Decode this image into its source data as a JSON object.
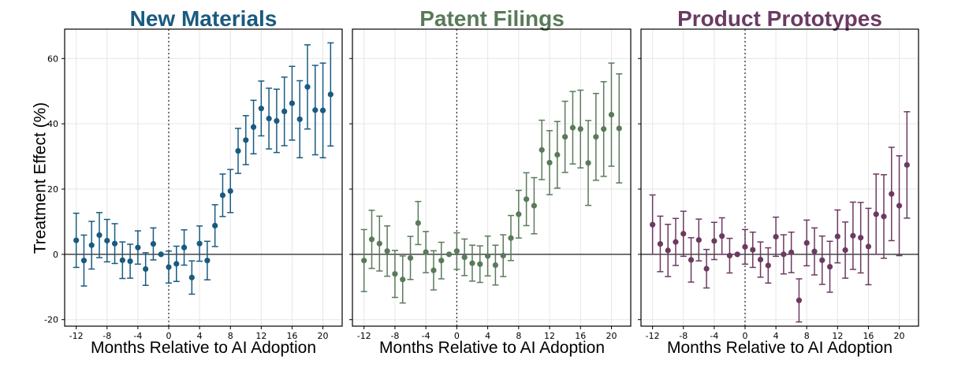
{
  "chart_data": [
    {
      "type": "scatter",
      "title": "New Materials",
      "color": "#1a5a80",
      "xlabel": "Months Relative to AI Adoption",
      "ylabel": "Treatment Effect (%)",
      "xlim": [
        -13.5,
        22.5
      ],
      "ylim": [
        -22,
        69
      ],
      "xticks": [
        -12,
        -8,
        -4,
        0,
        4,
        8,
        12,
        16,
        20
      ],
      "yticks": [
        -20,
        0,
        20,
        40,
        60
      ],
      "grid": true,
      "event_line_x": 0,
      "points": [
        {
          "x": -12,
          "y": 4.3,
          "lo": -4.0,
          "hi": 12.6
        },
        {
          "x": -11,
          "y": -1.9,
          "lo": -9.7,
          "hi": 5.9
        },
        {
          "x": -10,
          "y": 2.8,
          "lo": -4.5,
          "hi": 10.1
        },
        {
          "x": -9,
          "y": 5.9,
          "lo": -1.0,
          "hi": 12.8
        },
        {
          "x": -8,
          "y": 4.2,
          "lo": -2.3,
          "hi": 10.7
        },
        {
          "x": -7,
          "y": 3.3,
          "lo": -2.8,
          "hi": 9.4
        },
        {
          "x": -6,
          "y": -1.8,
          "lo": -7.4,
          "hi": 3.8
        },
        {
          "x": -5,
          "y": -2.1,
          "lo": -7.3,
          "hi": 3.1
        },
        {
          "x": -4,
          "y": 2.1,
          "lo": -3.0,
          "hi": 7.2
        },
        {
          "x": -3,
          "y": -4.5,
          "lo": -9.5,
          "hi": 0.5
        },
        {
          "x": -2,
          "y": 3.2,
          "lo": -1.7,
          "hi": 8.1
        },
        {
          "x": -1,
          "y": 0.0,
          "lo": 0.0,
          "hi": 0.0
        },
        {
          "x": 0,
          "y": -3.9,
          "lo": -8.8,
          "hi": 1.0
        },
        {
          "x": 1,
          "y": -2.9,
          "lo": -8.3,
          "hi": 2.5
        },
        {
          "x": 2,
          "y": 2.1,
          "lo": -3.3,
          "hi": 7.5
        },
        {
          "x": 3,
          "y": -7.1,
          "lo": -12.2,
          "hi": -2.0
        },
        {
          "x": 4,
          "y": 3.3,
          "lo": -2.1,
          "hi": 8.7
        },
        {
          "x": 5,
          "y": -1.9,
          "lo": -7.8,
          "hi": 4.0
        },
        {
          "x": 6,
          "y": 8.8,
          "lo": 2.4,
          "hi": 15.2
        },
        {
          "x": 7,
          "y": 18.1,
          "lo": 11.6,
          "hi": 24.6
        },
        {
          "x": 8,
          "y": 19.4,
          "lo": 12.8,
          "hi": 26.0
        },
        {
          "x": 9,
          "y": 31.7,
          "lo": 24.8,
          "hi": 38.6
        },
        {
          "x": 10,
          "y": 35.0,
          "lo": 27.5,
          "hi": 42.5
        },
        {
          "x": 11,
          "y": 39.0,
          "lo": 30.8,
          "hi": 47.2
        },
        {
          "x": 12,
          "y": 44.7,
          "lo": 36.3,
          "hi": 53.1
        },
        {
          "x": 13,
          "y": 41.6,
          "lo": 32.3,
          "hi": 50.9
        },
        {
          "x": 14,
          "y": 40.9,
          "lo": 31.2,
          "hi": 50.6
        },
        {
          "x": 15,
          "y": 43.8,
          "lo": 33.3,
          "hi": 54.3
        },
        {
          "x": 16,
          "y": 46.3,
          "lo": 35.0,
          "hi": 57.6
        },
        {
          "x": 17,
          "y": 41.4,
          "lo": 29.6,
          "hi": 53.2
        },
        {
          "x": 18,
          "y": 51.3,
          "lo": 38.4,
          "hi": 64.2
        },
        {
          "x": 19,
          "y": 44.2,
          "lo": 30.5,
          "hi": 57.9
        },
        {
          "x": 20,
          "y": 44.1,
          "lo": 29.6,
          "hi": 58.6
        },
        {
          "x": 21,
          "y": 49.0,
          "lo": 33.2,
          "hi": 64.8
        }
      ]
    },
    {
      "type": "scatter",
      "title": "Patent Filings",
      "color": "#5a7a5a",
      "xlabel": "Months Relative to AI Adoption",
      "ylabel": "",
      "xlim": [
        -13.5,
        22.5
      ],
      "ylim": [
        -22,
        69
      ],
      "xticks": [
        -12,
        -8,
        -4,
        0,
        4,
        8,
        12,
        16,
        20
      ],
      "yticks": [
        -20,
        0,
        20,
        40,
        60
      ],
      "grid": true,
      "event_line_x": 0,
      "points": [
        {
          "x": -12,
          "y": -1.9,
          "lo": -11.4,
          "hi": 7.6
        },
        {
          "x": -11,
          "y": 4.6,
          "lo": -4.3,
          "hi": 13.5
        },
        {
          "x": -10,
          "y": 3.3,
          "lo": -5.1,
          "hi": 11.7
        },
        {
          "x": -9,
          "y": 1.0,
          "lo": -6.7,
          "hi": 8.7
        },
        {
          "x": -8,
          "y": -6.0,
          "lo": -13.2,
          "hi": 1.2
        },
        {
          "x": -7,
          "y": -7.7,
          "lo": -14.9,
          "hi": -0.5
        },
        {
          "x": -6,
          "y": -1.1,
          "lo": -7.7,
          "hi": 5.5
        },
        {
          "x": -5,
          "y": 9.6,
          "lo": 3.0,
          "hi": 16.2
        },
        {
          "x": -4,
          "y": 0.7,
          "lo": -5.6,
          "hi": 7.0
        },
        {
          "x": -3,
          "y": -4.9,
          "lo": -10.9,
          "hi": 1.1
        },
        {
          "x": -2,
          "y": -1.9,
          "lo": -7.5,
          "hi": 3.7
        },
        {
          "x": -1,
          "y": 0.0,
          "lo": 0.0,
          "hi": 0.0
        },
        {
          "x": 0,
          "y": 1.0,
          "lo": -4.6,
          "hi": 6.6
        },
        {
          "x": 1,
          "y": -0.9,
          "lo": -6.5,
          "hi": 4.7
        },
        {
          "x": 2,
          "y": -2.7,
          "lo": -8.2,
          "hi": 2.8
        },
        {
          "x": 3,
          "y": -3.0,
          "lo": -8.6,
          "hi": 2.6
        },
        {
          "x": 4,
          "y": -0.5,
          "lo": -6.6,
          "hi": 5.6
        },
        {
          "x": 5,
          "y": -3.3,
          "lo": -9.4,
          "hi": 2.8
        },
        {
          "x": 6,
          "y": -0.4,
          "lo": -6.8,
          "hi": 6.0
        },
        {
          "x": 7,
          "y": 5.0,
          "lo": -1.9,
          "hi": 11.9
        },
        {
          "x": 8,
          "y": 12.3,
          "lo": 5.0,
          "hi": 19.6
        },
        {
          "x": 9,
          "y": 16.9,
          "lo": 8.8,
          "hi": 25.0
        },
        {
          "x": 10,
          "y": 14.9,
          "lo": 6.3,
          "hi": 23.5
        },
        {
          "x": 11,
          "y": 32.0,
          "lo": 22.9,
          "hi": 41.1
        },
        {
          "x": 12,
          "y": 28.1,
          "lo": 18.3,
          "hi": 37.9
        },
        {
          "x": 13,
          "y": 30.5,
          "lo": 20.3,
          "hi": 40.7
        },
        {
          "x": 14,
          "y": 36.0,
          "lo": 25.1,
          "hi": 46.9
        },
        {
          "x": 15,
          "y": 38.8,
          "lo": 27.7,
          "hi": 49.9
        },
        {
          "x": 16,
          "y": 38.4,
          "lo": 26.5,
          "hi": 50.3
        },
        {
          "x": 17,
          "y": 28.0,
          "lo": 15.0,
          "hi": 41.0
        },
        {
          "x": 18,
          "y": 36.0,
          "lo": 22.7,
          "hi": 49.3
        },
        {
          "x": 19,
          "y": 38.4,
          "lo": 23.9,
          "hi": 52.9
        },
        {
          "x": 20,
          "y": 42.8,
          "lo": 27.0,
          "hi": 58.6
        },
        {
          "x": 21,
          "y": 38.6,
          "lo": 21.9,
          "hi": 55.3
        }
      ]
    },
    {
      "type": "scatter",
      "title": "Product Prototypes",
      "color": "#6b3a62",
      "xlabel": "Months Relative to AI Adoption",
      "ylabel": "",
      "xlim": [
        -13.5,
        22.5
      ],
      "ylim": [
        -22,
        69
      ],
      "xticks": [
        -12,
        -8,
        -4,
        0,
        4,
        8,
        12,
        16,
        20
      ],
      "yticks": [
        -20,
        0,
        20,
        40,
        60
      ],
      "grid": true,
      "event_line_x": 0,
      "points": [
        {
          "x": -12,
          "y": 9.1,
          "lo": 0.0,
          "hi": 18.2
        },
        {
          "x": -11,
          "y": 3.2,
          "lo": -5.3,
          "hi": 11.7
        },
        {
          "x": -10,
          "y": 1.2,
          "lo": -6.8,
          "hi": 9.2
        },
        {
          "x": -9,
          "y": 3.8,
          "lo": -3.4,
          "hi": 11.0
        },
        {
          "x": -8,
          "y": 6.3,
          "lo": -0.6,
          "hi": 13.2
        },
        {
          "x": -7,
          "y": -1.7,
          "lo": -8.5,
          "hi": 5.1
        },
        {
          "x": -6,
          "y": 4.4,
          "lo": -2.0,
          "hi": 10.8
        },
        {
          "x": -5,
          "y": -4.4,
          "lo": -10.3,
          "hi": 1.5
        },
        {
          "x": -4,
          "y": 4.1,
          "lo": -1.6,
          "hi": 9.8
        },
        {
          "x": -3,
          "y": 5.6,
          "lo": 0.0,
          "hi": 11.2
        },
        {
          "x": -2,
          "y": -0.4,
          "lo": -5.7,
          "hi": 4.9
        },
        {
          "x": -1,
          "y": 0.0,
          "lo": 0.0,
          "hi": 0.0
        },
        {
          "x": 0,
          "y": 2.3,
          "lo": -3.0,
          "hi": 7.6
        },
        {
          "x": 1,
          "y": 1.4,
          "lo": -4.0,
          "hi": 6.8
        },
        {
          "x": 2,
          "y": -1.6,
          "lo": -7.0,
          "hi": 3.8
        },
        {
          "x": 3,
          "y": -3.4,
          "lo": -8.8,
          "hi": 2.0
        },
        {
          "x": 4,
          "y": 5.4,
          "lo": -0.6,
          "hi": 11.4
        },
        {
          "x": 5,
          "y": 0.0,
          "lo": -6.0,
          "hi": 6.0
        },
        {
          "x": 6,
          "y": 0.6,
          "lo": -5.6,
          "hi": 6.8
        },
        {
          "x": 7,
          "y": -14.1,
          "lo": -20.7,
          "hi": -7.5
        },
        {
          "x": 8,
          "y": 3.5,
          "lo": -3.5,
          "hi": 10.5
        },
        {
          "x": 9,
          "y": 0.9,
          "lo": -6.3,
          "hi": 8.1
        },
        {
          "x": 10,
          "y": -1.8,
          "lo": -9.2,
          "hi": 5.6
        },
        {
          "x": 11,
          "y": -3.8,
          "lo": -11.6,
          "hi": 4.0
        },
        {
          "x": 12,
          "y": 5.5,
          "lo": -2.6,
          "hi": 13.6
        },
        {
          "x": 13,
          "y": 1.3,
          "lo": -7.3,
          "hi": 9.9
        },
        {
          "x": 14,
          "y": 5.7,
          "lo": -4.6,
          "hi": 16.0
        },
        {
          "x": 15,
          "y": 5.1,
          "lo": -5.7,
          "hi": 15.9
        },
        {
          "x": 16,
          "y": 2.4,
          "lo": -9.3,
          "hi": 14.1
        },
        {
          "x": 17,
          "y": 12.3,
          "lo": 0.0,
          "hi": 24.6
        },
        {
          "x": 18,
          "y": 11.6,
          "lo": -1.2,
          "hi": 24.4
        },
        {
          "x": 19,
          "y": 18.5,
          "lo": 4.2,
          "hi": 32.8
        },
        {
          "x": 20,
          "y": 14.9,
          "lo": -0.4,
          "hi": 30.2
        },
        {
          "x": 21,
          "y": 27.4,
          "lo": 11.1,
          "hi": 43.7
        }
      ]
    }
  ]
}
